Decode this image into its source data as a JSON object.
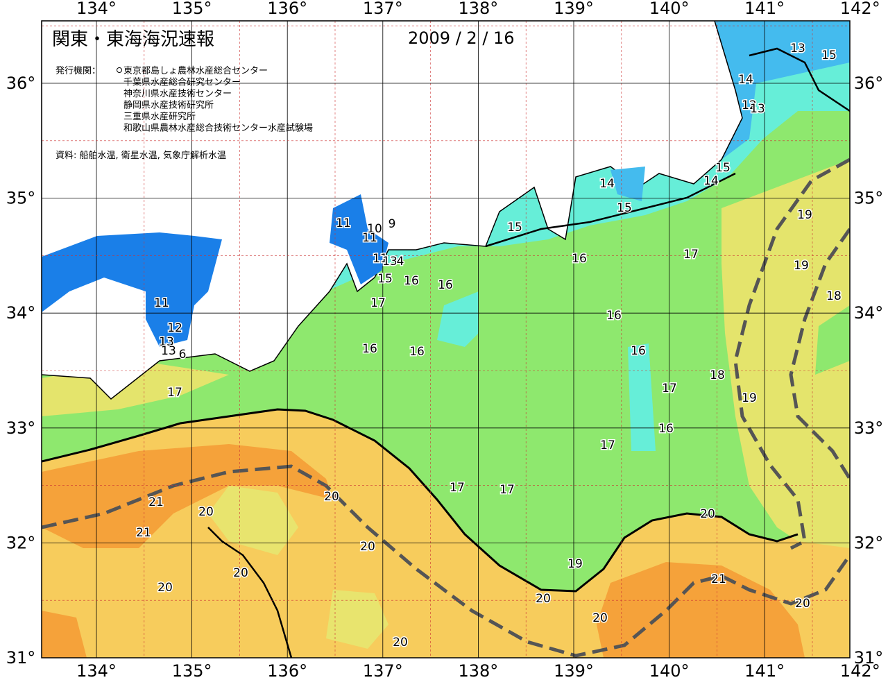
{
  "header": {
    "title": "関東・東海海況速報",
    "date": "2009 / 2 / 16",
    "publisher_label": "発行機関：",
    "publishers": [
      "東京都島しょ農林水産総合センター",
      "千葉県水産総合研究センター",
      "神奈川県水産技術センター",
      "静岡県水産技術研究所",
      "三重県水産研究所",
      "和歌山県農林水産総合技術センター水産試験場"
    ],
    "source": "資料: 船舶水温, 衛星水温, 気象庁解析水温"
  },
  "map": {
    "longitudes": [
      "134°",
      "135°",
      "136°",
      "137°",
      "138°",
      "139°",
      "140°",
      "141°",
      "142°"
    ],
    "latitudes": [
      "31°",
      "32°",
      "33°",
      "34°",
      "35°",
      "36°"
    ],
    "contour_labels": [
      13,
      15,
      14,
      12,
      13,
      14,
      15,
      15,
      14,
      15,
      11,
      10,
      9,
      11,
      11,
      13,
      4,
      15,
      16,
      16,
      17,
      16,
      17,
      19,
      19,
      18,
      11,
      12,
      13,
      13,
      6,
      16,
      16,
      16,
      16,
      17,
      18,
      19,
      16,
      17,
      17,
      17,
      17,
      21,
      20,
      20,
      21,
      20,
      20,
      19,
      20,
      20,
      21,
      20,
      20,
      20,
      20
    ]
  }
}
